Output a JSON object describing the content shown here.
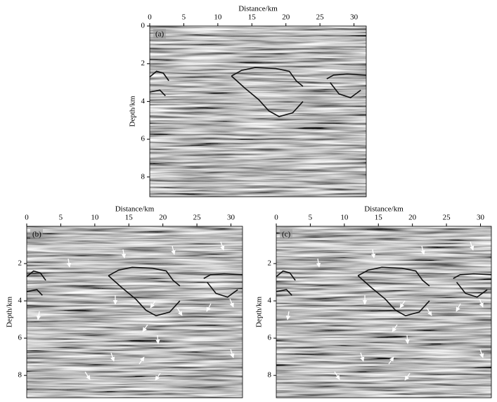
{
  "chart_data": [
    {
      "type": "image",
      "label": "(a)",
      "x_label": "Distance/km",
      "y_label": "Depth/km",
      "xlim": [
        0,
        31.8
      ],
      "ylim": [
        0,
        9.05
      ],
      "xticks": [
        0,
        5,
        10,
        15,
        20,
        25,
        30
      ],
      "yticks": [
        0,
        2,
        4,
        6,
        8
      ]
    },
    {
      "type": "image",
      "label": "(b)",
      "x_label": "Distance/km",
      "y_label": "Depth/km",
      "xlim": [
        0,
        31.7
      ],
      "ylim": [
        0,
        9.2
      ],
      "xticks": [
        0,
        5,
        10,
        15,
        20,
        25,
        30
      ],
      "yticks": [
        2,
        4,
        6,
        8
      ]
    },
    {
      "type": "image",
      "label": "(c)",
      "x_label": "Distance/km",
      "y_label": "Depth/km",
      "xlim": [
        0,
        31.6
      ],
      "ylim": [
        0,
        9.2
      ],
      "xticks": [
        0,
        5,
        10,
        15,
        20,
        25,
        30
      ],
      "yticks": [
        2,
        4,
        6,
        8
      ]
    }
  ]
}
